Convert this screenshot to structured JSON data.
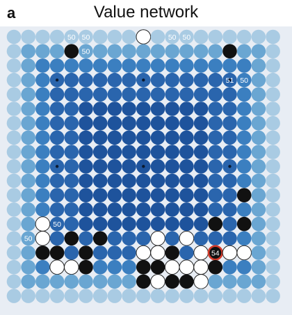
{
  "panel_label": "a",
  "title": "Value network",
  "board": {
    "size": 19,
    "background": "#e8edf4",
    "palette": {
      "edge": "#a9cbe3",
      "near_edge": "#6aa6d2",
      "mid": "#3b7fc0",
      "inner": "#2a65ad",
      "core": "#1e539c",
      "black_stone": "#111111",
      "white_stone": "#ffffff",
      "best_move_ring": "#d43a2a",
      "value_label_text": "#ffffff"
    },
    "hoshi": [
      [
        3,
        3
      ],
      [
        3,
        9
      ],
      [
        3,
        15
      ],
      [
        9,
        3
      ],
      [
        9,
        9
      ],
      [
        9,
        15
      ],
      [
        15,
        3
      ],
      [
        15,
        9
      ],
      [
        15,
        15
      ]
    ],
    "black_stones": [
      [
        4,
        1
      ],
      [
        15,
        1
      ],
      [
        16,
        11
      ],
      [
        14,
        13
      ],
      [
        16,
        13
      ],
      [
        4,
        14
      ],
      [
        6,
        14
      ],
      [
        2,
        15
      ],
      [
        3,
        15
      ],
      [
        5,
        15
      ],
      [
        11,
        15
      ],
      [
        14,
        15
      ],
      [
        5,
        16
      ],
      [
        9,
        16
      ],
      [
        10,
        16
      ],
      [
        14,
        16
      ],
      [
        9,
        17
      ],
      [
        11,
        17
      ],
      [
        12,
        17
      ]
    ],
    "white_stones": [
      [
        9,
        0
      ],
      [
        2,
        13
      ],
      [
        2,
        14
      ],
      [
        10,
        14
      ],
      [
        12,
        14
      ],
      [
        9,
        15
      ],
      [
        10,
        15
      ],
      [
        13,
        15
      ],
      [
        15,
        15
      ],
      [
        16,
        15
      ],
      [
        3,
        16
      ],
      [
        4,
        16
      ],
      [
        11,
        16
      ],
      [
        12,
        16
      ],
      [
        13,
        16
      ],
      [
        10,
        17
      ],
      [
        13,
        17
      ]
    ],
    "value_labels": [
      {
        "col": 4,
        "row": 0,
        "text": "50"
      },
      {
        "col": 5,
        "row": 0,
        "text": "50"
      },
      {
        "col": 11,
        "row": 0,
        "text": "50"
      },
      {
        "col": 12,
        "row": 0,
        "text": "50"
      },
      {
        "col": 5,
        "row": 1,
        "text": "50"
      },
      {
        "col": 15,
        "row": 3,
        "text": "51"
      },
      {
        "col": 16,
        "row": 3,
        "text": "50"
      },
      {
        "col": 3,
        "row": 13,
        "text": "50"
      },
      {
        "col": 1,
        "row": 14,
        "text": "50"
      },
      {
        "col": 14,
        "row": 15,
        "text": "54",
        "best": true
      }
    ]
  }
}
